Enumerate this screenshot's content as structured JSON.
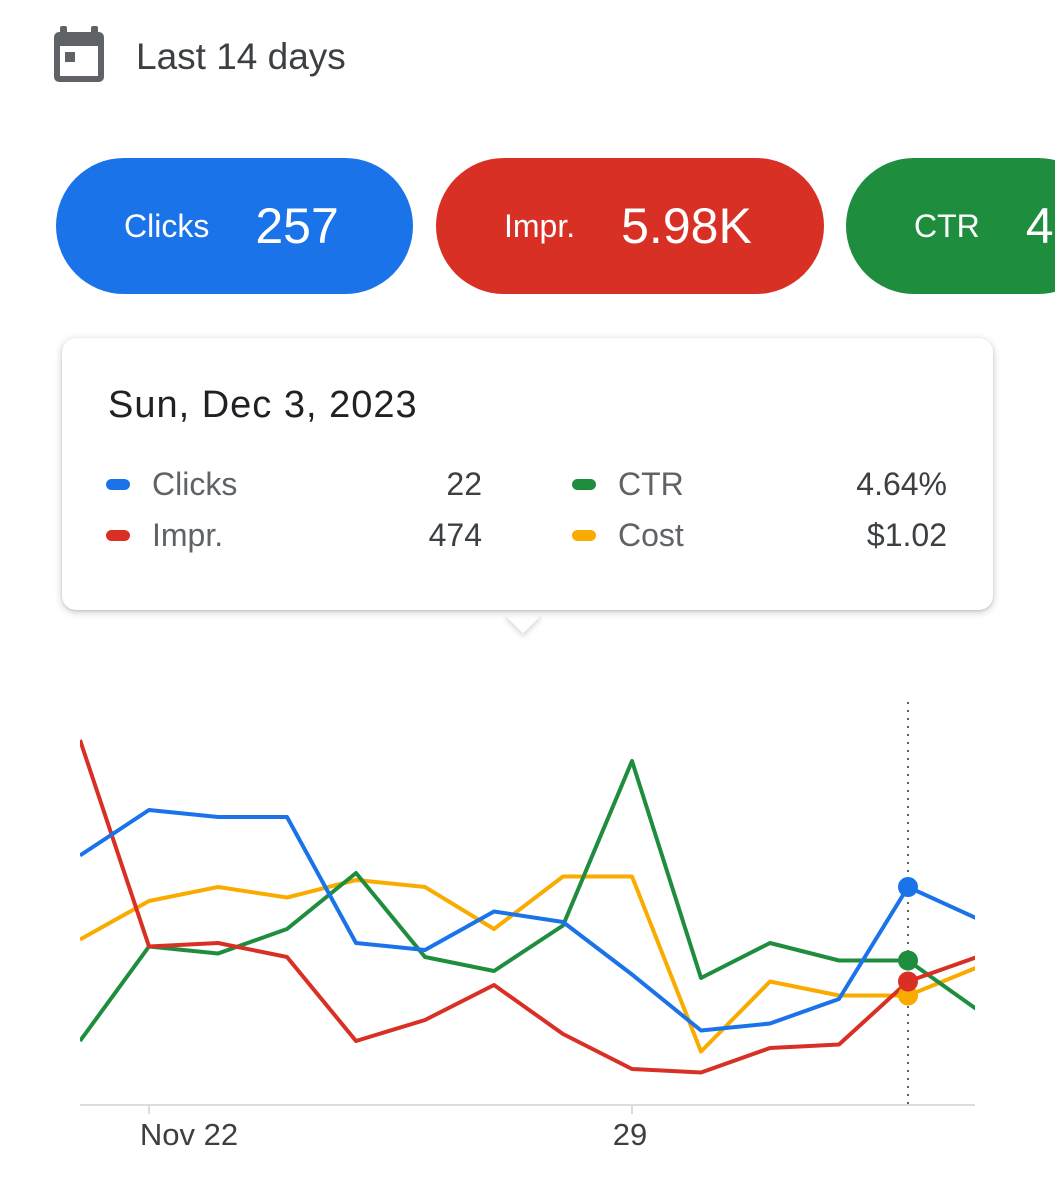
{
  "header": {
    "calendar_icon": "calendar-icon",
    "range_label": "Last 14 days"
  },
  "chips": [
    {
      "label": "Clicks",
      "value": "257",
      "color": "#1a73e8"
    },
    {
      "label": "Impr.",
      "value": "5.98K",
      "color": "#d93025"
    },
    {
      "label": "CTR",
      "value": "4",
      "color": "#1e8e3e"
    }
  ],
  "tooltip": {
    "date": "Sun, Dec 3, 2023",
    "rows": [
      {
        "label": "Clicks",
        "value": "22",
        "color": "#1a73e8"
      },
      {
        "label": "Impr.",
        "value": "474",
        "color": "#d93025"
      },
      {
        "label": "CTR",
        "value": "4.64%",
        "color": "#1e8e3e"
      },
      {
        "label": "Cost",
        "value": "$1.02",
        "color": "#f9ab00"
      }
    ]
  },
  "chart_data": {
    "type": "line",
    "title": "",
    "xlabel": "",
    "ylabel": "",
    "x": [
      "Nov 21",
      "Nov 22",
      "Nov 23",
      "Nov 24",
      "Nov 25",
      "Nov 26",
      "Nov 27",
      "Nov 28",
      "Nov 29",
      "Nov 30",
      "Dec 1",
      "Dec 2",
      "Dec 3",
      "Dec 4"
    ],
    "x_tick_labels": [
      "Nov 22",
      "29"
    ],
    "x_ticks_at": [
      "Nov 22",
      "Nov 29"
    ],
    "highlight_x": "Dec 3",
    "grid": false,
    "legend": "none",
    "axes_note": "each series drawn on its own normalized scale; no y axis shown",
    "series": [
      {
        "name": "Clicks",
        "color": "#1a73e8",
        "normalized": [
          0.67,
          0.8,
          0.78,
          0.78,
          0.42,
          0.4,
          0.51,
          0.48,
          0.33,
          0.17,
          0.19,
          0.26,
          0.58,
          0.49
        ]
      },
      {
        "name": "Impr.",
        "color": "#d93025",
        "normalized": [
          1.0,
          0.41,
          0.42,
          0.38,
          0.14,
          0.2,
          0.3,
          0.16,
          0.06,
          0.05,
          0.12,
          0.13,
          0.31,
          0.38
        ]
      },
      {
        "name": "CTR",
        "color": "#1e8e3e",
        "normalized": [
          0.14,
          0.41,
          0.39,
          0.46,
          0.62,
          0.38,
          0.34,
          0.47,
          0.94,
          0.32,
          0.42,
          0.37,
          0.37,
          0.23
        ]
      },
      {
        "name": "Cost",
        "color": "#f9ab00",
        "normalized": [
          0.43,
          0.54,
          0.58,
          0.55,
          0.6,
          0.58,
          0.46,
          0.61,
          0.61,
          0.11,
          0.31,
          0.27,
          0.27,
          0.35
        ]
      }
    ]
  }
}
